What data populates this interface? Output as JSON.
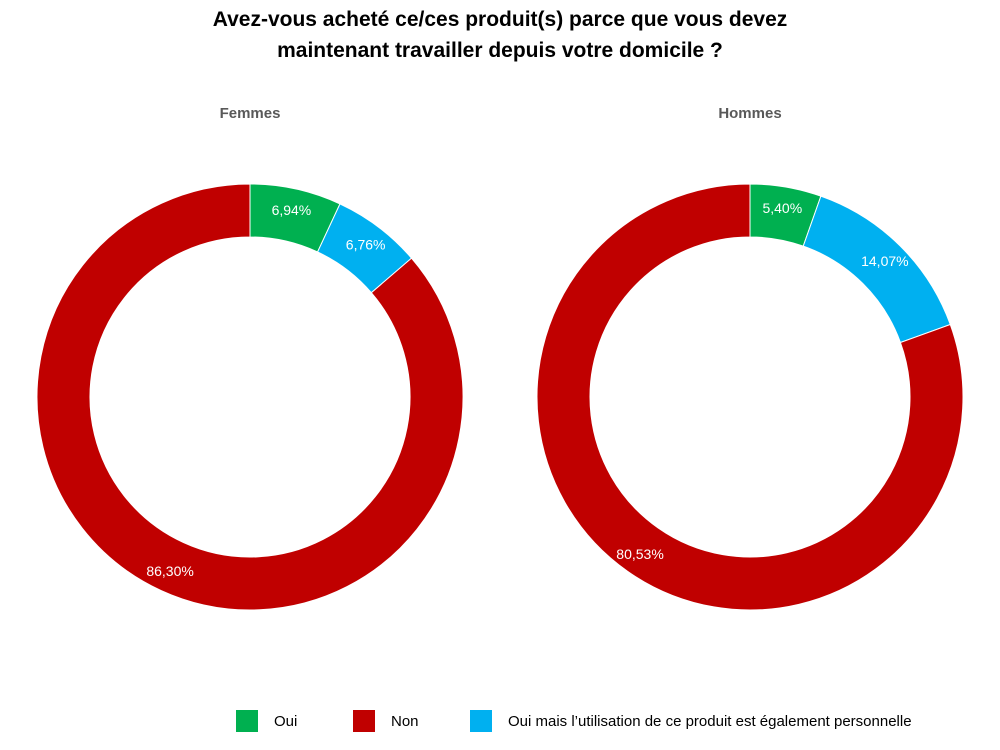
{
  "title_line1": "Avez-vous acheté ce/ces produit(s) parce que vous devez",
  "title_line2": "maintenant travailler depuis votre domicile ?",
  "colors": {
    "oui": "#00b050",
    "non": "#c00000",
    "oui_perso": "#00b0f0"
  },
  "chart_data": [
    {
      "type": "pie",
      "title": "Femmes",
      "slices": [
        {
          "name": "Oui",
          "value": 6.94,
          "label": "6,94%"
        },
        {
          "name": "Oui mais l’utilisation de ce produit est également personnelle",
          "value": 6.76,
          "label": "6,76%"
        },
        {
          "name": "Non",
          "value": 86.3,
          "label": "86,30%"
        }
      ]
    },
    {
      "type": "pie",
      "title": "Hommes",
      "slices": [
        {
          "name": "Oui",
          "value": 5.4,
          "label": "5,40%"
        },
        {
          "name": "Oui mais l’utilisation de ce produit est également personnelle",
          "value": 14.07,
          "label": "14,07%"
        },
        {
          "name": "Non",
          "value": 80.53,
          "label": "80,53%"
        }
      ]
    }
  ],
  "legend": [
    {
      "key": "oui",
      "label": "Oui"
    },
    {
      "key": "non",
      "label": "Non"
    },
    {
      "key": "oui_perso",
      "label": "Oui mais l’utilisation de ce produit est également personnelle"
    }
  ]
}
